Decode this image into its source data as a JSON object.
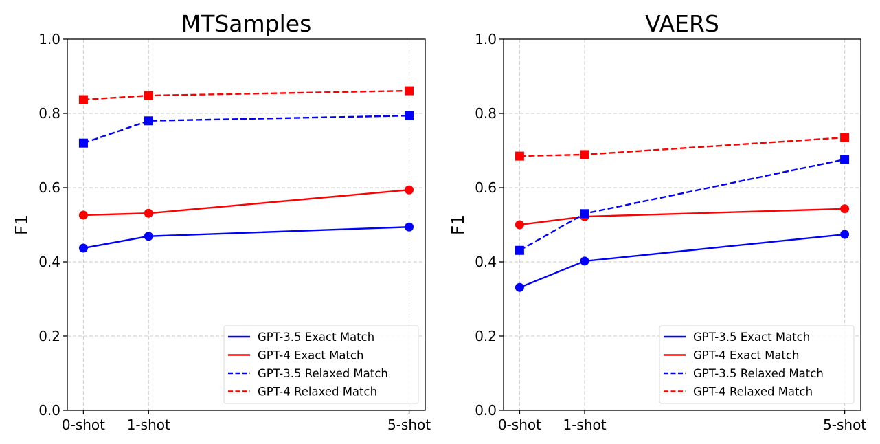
{
  "chart_data": [
    {
      "type": "line",
      "title": "MTSamples",
      "xlabel": "",
      "ylabel": "F1",
      "categories": [
        "0-shot",
        "1-shot",
        "5-shot"
      ],
      "x": [
        0,
        1,
        5
      ],
      "ylim": [
        0.0,
        1.0
      ],
      "yticks": [
        "0.0",
        "0.2",
        "0.4",
        "0.6",
        "0.8",
        "1.0"
      ],
      "grid": true,
      "legend_position": "lower-right",
      "series": [
        {
          "name": "GPT-3.5 Exact Match",
          "color": "#0000ff",
          "style": "solid",
          "marker": "circle",
          "values": [
            0.437,
            0.469,
            0.494
          ]
        },
        {
          "name": "GPT-4 Exact Match",
          "color": "#ff0000",
          "style": "solid",
          "marker": "circle",
          "values": [
            0.526,
            0.531,
            0.594
          ]
        },
        {
          "name": "GPT-3.5 Relaxed Match",
          "color": "#0000ff",
          "style": "dashed",
          "marker": "square",
          "values": [
            0.72,
            0.78,
            0.794
          ]
        },
        {
          "name": "GPT-4 Relaxed Match",
          "color": "#ff0000",
          "style": "dashed",
          "marker": "square",
          "values": [
            0.837,
            0.848,
            0.861
          ]
        }
      ]
    },
    {
      "type": "line",
      "title": "VAERS",
      "xlabel": "",
      "ylabel": "F1",
      "categories": [
        "0-shot",
        "1-shot",
        "5-shot"
      ],
      "x": [
        0,
        1,
        5
      ],
      "ylim": [
        0.0,
        1.0
      ],
      "yticks": [
        "0.0",
        "0.2",
        "0.4",
        "0.6",
        "0.8",
        "1.0"
      ],
      "grid": true,
      "legend_position": "lower-right",
      "series": [
        {
          "name": "GPT-3.5 Exact Match",
          "color": "#0000ff",
          "style": "solid",
          "marker": "circle",
          "values": [
            0.331,
            0.402,
            0.474
          ]
        },
        {
          "name": "GPT-4 Exact Match",
          "color": "#ff0000",
          "style": "solid",
          "marker": "circle",
          "values": [
            0.5,
            0.522,
            0.543
          ]
        },
        {
          "name": "GPT-3.5 Relaxed Match",
          "color": "#0000ff",
          "style": "dashed",
          "marker": "square",
          "values": [
            0.431,
            0.53,
            0.676
          ]
        },
        {
          "name": "GPT-4 Relaxed Match",
          "color": "#ff0000",
          "style": "dashed",
          "marker": "square",
          "values": [
            0.685,
            0.689,
            0.735
          ]
        }
      ]
    }
  ]
}
